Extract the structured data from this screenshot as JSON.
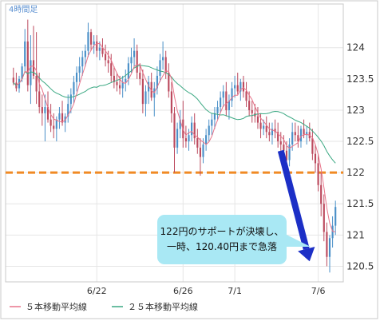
{
  "chart_data": {
    "type": "candlestick",
    "timeframe_label": "4時間足",
    "y_ticks": [
      120.5,
      121,
      121.5,
      122,
      122.5,
      123,
      123.5,
      124
    ],
    "ylim": [
      120.25,
      124.7
    ],
    "x_ticks": [
      {
        "label": "6/22",
        "index": 29
      },
      {
        "label": "6/26",
        "index": 59
      },
      {
        "label": "7/1",
        "index": 77
      },
      {
        "label": "7/6",
        "index": 106
      }
    ],
    "candles": [
      [
        123.52,
        123.68,
        123.4,
        123.44
      ],
      [
        123.44,
        123.6,
        123.3,
        123.35
      ],
      [
        123.35,
        123.55,
        123.28,
        123.5
      ],
      [
        123.5,
        123.75,
        123.45,
        123.7
      ],
      [
        123.7,
        124.3,
        123.62,
        124.1
      ],
      [
        124.1,
        124.45,
        123.3,
        123.4
      ],
      [
        123.4,
        124.2,
        123.1,
        123.8
      ],
      [
        123.8,
        124.35,
        123.5,
        123.55
      ],
      [
        123.55,
        124.25,
        123.1,
        123.3
      ],
      [
        123.3,
        123.6,
        122.95,
        123.05
      ],
      [
        123.05,
        123.25,
        122.75,
        122.95
      ],
      [
        122.95,
        123.25,
        122.5,
        123.05
      ],
      [
        123.05,
        123.3,
        122.8,
        122.85
      ],
      [
        122.85,
        123.1,
        122.65,
        122.75
      ],
      [
        122.75,
        122.95,
        122.55,
        122.7
      ],
      [
        122.7,
        122.9,
        122.5,
        122.85
      ],
      [
        122.85,
        123.05,
        122.7,
        122.95
      ],
      [
        122.95,
        123.15,
        122.75,
        122.8
      ],
      [
        122.8,
        122.95,
        122.65,
        122.9
      ],
      [
        122.9,
        123.25,
        122.8,
        123.1
      ],
      [
        123.1,
        123.35,
        122.95,
        123.25
      ],
      [
        123.25,
        123.55,
        123.1,
        123.45
      ],
      [
        123.45,
        123.7,
        123.3,
        123.6
      ],
      [
        123.6,
        123.85,
        123.45,
        123.7
      ],
      [
        123.7,
        123.95,
        123.55,
        123.85
      ],
      [
        123.85,
        124.05,
        123.7,
        123.95
      ],
      [
        123.95,
        124.4,
        123.85,
        124.25
      ],
      [
        124.25,
        124.3,
        123.95,
        124.05
      ],
      [
        124.05,
        124.2,
        123.9,
        124.1
      ],
      [
        124.1,
        124.2,
        123.85,
        123.95
      ],
      [
        123.95,
        124.1,
        123.8,
        124.0
      ],
      [
        124.0,
        124.15,
        123.85,
        123.9
      ],
      [
        123.9,
        124.05,
        123.7,
        123.8
      ],
      [
        123.8,
        123.95,
        123.6,
        123.75
      ],
      [
        123.75,
        123.9,
        123.45,
        123.55
      ],
      [
        123.55,
        123.7,
        123.35,
        123.45
      ],
      [
        123.45,
        123.6,
        123.3,
        123.4
      ],
      [
        123.4,
        123.55,
        123.25,
        123.35
      ],
      [
        123.35,
        123.55,
        123.2,
        123.45
      ],
      [
        123.45,
        123.65,
        123.3,
        123.5
      ],
      [
        123.5,
        123.85,
        123.4,
        123.75
      ],
      [
        123.75,
        124.0,
        123.6,
        123.85
      ],
      [
        123.85,
        124.15,
        123.7,
        123.95
      ],
      [
        123.95,
        124.05,
        123.5,
        123.6
      ],
      [
        123.6,
        123.75,
        123.4,
        123.5
      ],
      [
        123.5,
        123.65,
        122.95,
        123.1
      ],
      [
        123.1,
        123.4,
        122.9,
        123.3
      ],
      [
        123.3,
        123.55,
        123.1,
        123.45
      ],
      [
        123.45,
        123.6,
        123.15,
        123.2
      ],
      [
        123.2,
        123.45,
        122.9,
        123.35
      ],
      [
        123.35,
        123.7,
        123.25,
        123.55
      ],
      [
        123.55,
        123.9,
        123.45,
        123.8
      ],
      [
        123.8,
        124.1,
        123.65,
        123.85
      ],
      [
        123.85,
        123.95,
        123.5,
        123.6
      ],
      [
        123.6,
        123.75,
        123.2,
        123.3
      ],
      [
        123.3,
        123.45,
        122.8,
        122.95
      ],
      [
        122.95,
        123.05,
        122.0,
        122.4
      ],
      [
        122.4,
        122.8,
        122.3,
        122.7
      ],
      [
        122.7,
        123.0,
        122.55,
        122.85
      ],
      [
        122.85,
        123.15,
        122.4,
        122.55
      ],
      [
        122.55,
        122.75,
        122.4,
        122.5
      ],
      [
        122.5,
        122.7,
        122.35,
        122.6
      ],
      [
        122.6,
        122.9,
        122.5,
        122.8
      ],
      [
        122.8,
        122.95,
        122.45,
        122.55
      ],
      [
        122.55,
        122.7,
        122.3,
        122.4
      ],
      [
        122.4,
        122.55,
        121.95,
        122.25
      ],
      [
        122.25,
        122.55,
        122.15,
        122.45
      ],
      [
        122.45,
        122.7,
        122.35,
        122.6
      ],
      [
        122.6,
        122.85,
        122.5,
        122.75
      ],
      [
        122.75,
        122.95,
        122.6,
        122.85
      ],
      [
        122.85,
        123.05,
        122.7,
        122.95
      ],
      [
        122.95,
        123.15,
        122.85,
        123.05
      ],
      [
        123.05,
        123.3,
        122.95,
        123.2
      ],
      [
        123.2,
        123.4,
        123.05,
        123.3
      ],
      [
        123.3,
        123.45,
        122.9,
        123.0
      ],
      [
        123.0,
        123.25,
        122.85,
        123.15
      ],
      [
        123.15,
        123.45,
        123.05,
        123.35
      ],
      [
        123.35,
        123.55,
        123.2,
        123.4
      ],
      [
        123.4,
        123.6,
        123.25,
        123.3
      ],
      [
        123.3,
        123.5,
        123.15,
        123.45
      ],
      [
        123.45,
        123.55,
        123.2,
        123.3
      ],
      [
        123.3,
        123.45,
        123.05,
        123.15
      ],
      [
        123.15,
        123.3,
        122.9,
        123.0
      ],
      [
        123.0,
        123.15,
        122.8,
        122.95
      ],
      [
        122.95,
        123.1,
        122.8,
        122.9
      ],
      [
        122.9,
        123.05,
        122.7,
        122.8
      ],
      [
        122.8,
        122.95,
        122.55,
        122.7
      ],
      [
        122.7,
        122.85,
        122.6,
        122.75
      ],
      [
        122.75,
        122.9,
        122.55,
        122.65
      ],
      [
        122.65,
        122.8,
        122.5,
        122.6
      ],
      [
        122.6,
        122.8,
        122.45,
        122.7
      ],
      [
        122.7,
        122.85,
        122.55,
        122.65
      ],
      [
        122.65,
        122.8,
        122.4,
        122.5
      ],
      [
        122.5,
        122.65,
        122.35,
        122.45
      ],
      [
        122.45,
        122.6,
        122.25,
        122.35
      ],
      [
        122.35,
        122.5,
        121.85,
        122.2
      ],
      [
        122.2,
        122.55,
        122.1,
        122.45
      ],
      [
        122.45,
        122.8,
        122.35,
        122.65
      ],
      [
        122.65,
        122.8,
        122.5,
        122.6
      ],
      [
        122.6,
        122.75,
        122.4,
        122.5
      ],
      [
        122.5,
        122.75,
        122.4,
        122.7
      ],
      [
        122.7,
        122.85,
        122.55,
        122.6
      ],
      [
        122.6,
        122.75,
        122.45,
        122.65
      ],
      [
        122.65,
        122.8,
        122.5,
        122.55
      ],
      [
        122.55,
        122.7,
        122.2,
        122.3
      ],
      [
        122.3,
        122.45,
        122.0,
        122.15
      ],
      [
        122.15,
        122.3,
        121.7,
        121.8
      ],
      [
        121.8,
        122.0,
        121.3,
        121.5
      ],
      [
        121.5,
        121.65,
        120.9,
        121.05
      ],
      [
        121.05,
        121.2,
        120.5,
        120.65
      ],
      [
        120.65,
        121.0,
        120.4,
        120.95
      ],
      [
        120.95,
        121.3,
        120.8,
        121.15
      ],
      [
        121.15,
        121.55,
        121.0,
        121.45
      ]
    ],
    "series": [
      {
        "name": "５本移動平均線",
        "color": "#e8748a"
      },
      {
        "name": "２５本移動平均線",
        "color": "#3aa882"
      }
    ],
    "support_line": {
      "value": 122.0,
      "color": "#f08a24"
    },
    "annotation": {
      "lines": [
        "122円のサポートが決壊し、",
        "一時、120.40円まで急落"
      ],
      "bg_color": "#a9e8f4"
    },
    "arrow": {
      "from": [
        93,
        122.35
      ],
      "to": [
        103,
        120.58
      ],
      "color": "#1c2fc6"
    },
    "grid": true,
    "legend": "bottom-left",
    "candle_up_color": "#4a90c8",
    "candle_down_color": "#bc4a5e"
  }
}
